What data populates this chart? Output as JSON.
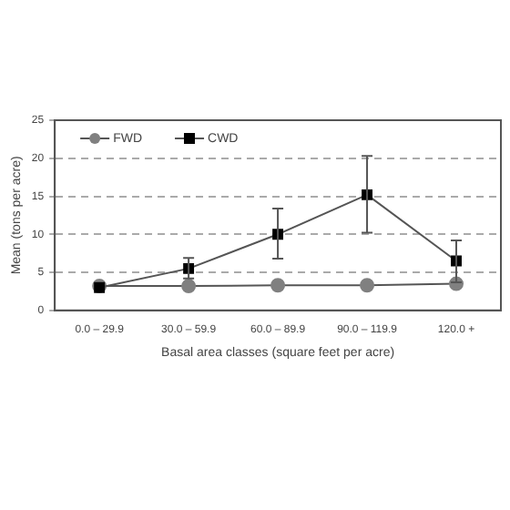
{
  "chart_data": {
    "type": "line",
    "xlabel": "Basal area classes (square feet per acre)",
    "ylabel": "Mean (tons per acre)",
    "categories": [
      "0.0 – 29.9",
      "30.0 – 59.9",
      "60.0 – 89.9",
      "90.0 – 119.9",
      "120.0 +"
    ],
    "series": [
      {
        "name": "FWD",
        "color": "#808080",
        "marker": "circle",
        "values": [
          3.2,
          3.2,
          3.3,
          3.3,
          3.5
        ]
      },
      {
        "name": "CWD",
        "color": "#000000",
        "marker": "square",
        "values": [
          3.0,
          5.5,
          10.0,
          15.2,
          6.5
        ],
        "errors": [
          null,
          [
            4.2,
            6.9
          ],
          [
            6.8,
            13.4
          ],
          [
            10.2,
            20.3
          ],
          [
            3.7,
            9.2
          ]
        ]
      }
    ],
    "ylim": [
      0,
      25
    ],
    "yticks": [
      0,
      5,
      10,
      15,
      20,
      25
    ],
    "grid": "y",
    "legend": "top left",
    "line_style": "solid"
  }
}
